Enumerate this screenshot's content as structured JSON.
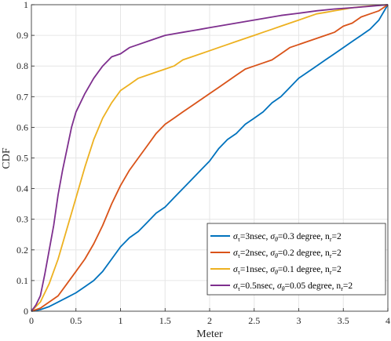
{
  "chart_data": {
    "type": "line",
    "xlabel": "Meter",
    "ylabel": "CDF",
    "xlim": [
      0,
      4
    ],
    "ylim": [
      0,
      1
    ],
    "xticks": [
      "0",
      "0.5",
      "1",
      "1.5",
      "2",
      "2.5",
      "3",
      "3.5",
      "4"
    ],
    "yticks": [
      "0",
      "0.1",
      "0.2",
      "0.3",
      "0.4",
      "0.5",
      "0.6",
      "0.7",
      "0.8",
      "0.9",
      "1"
    ],
    "grid": true,
    "legend_position": "bottom-right",
    "series": [
      {
        "legend": {
          "sigma_tau": "=3nsec, ",
          "sigma_theta": "=0.3 degree, n",
          "r_sub": "r",
          "tail": "=2"
        },
        "color": "#0072BD",
        "x": [
          0,
          0.1,
          0.2,
          0.3,
          0.4,
          0.5,
          0.6,
          0.7,
          0.8,
          0.9,
          1.0,
          1.1,
          1.2,
          1.3,
          1.4,
          1.5,
          1.6,
          1.7,
          1.8,
          1.9,
          2.0,
          2.1,
          2.2,
          2.3,
          2.4,
          2.5,
          2.6,
          2.7,
          2.8,
          2.9,
          3.0,
          3.1,
          3.2,
          3.3,
          3.4,
          3.5,
          3.6,
          3.7,
          3.8,
          3.9,
          4.0
        ],
        "y": [
          0,
          0.005,
          0.015,
          0.03,
          0.045,
          0.06,
          0.08,
          0.1,
          0.13,
          0.17,
          0.21,
          0.24,
          0.26,
          0.29,
          0.32,
          0.34,
          0.37,
          0.4,
          0.43,
          0.46,
          0.49,
          0.53,
          0.56,
          0.58,
          0.61,
          0.63,
          0.65,
          0.68,
          0.7,
          0.73,
          0.76,
          0.78,
          0.8,
          0.82,
          0.84,
          0.86,
          0.88,
          0.9,
          0.92,
          0.95,
          1.0
        ]
      },
      {
        "legend": {
          "sigma_tau": "=2nsec, ",
          "sigma_theta": "=0.2 degree, n",
          "r_sub": "r",
          "tail": "=2"
        },
        "color": "#D95319",
        "x": [
          0,
          0.1,
          0.2,
          0.3,
          0.4,
          0.5,
          0.6,
          0.7,
          0.8,
          0.9,
          1.0,
          1.1,
          1.2,
          1.3,
          1.4,
          1.5,
          1.6,
          1.7,
          1.8,
          1.9,
          2.0,
          2.1,
          2.2,
          2.3,
          2.4,
          2.5,
          2.6,
          2.7,
          2.8,
          2.9,
          3.0,
          3.1,
          3.2,
          3.3,
          3.4,
          3.5,
          3.6,
          3.7,
          3.8,
          3.9,
          4.0
        ],
        "y": [
          0,
          0.01,
          0.03,
          0.05,
          0.09,
          0.13,
          0.17,
          0.22,
          0.28,
          0.35,
          0.41,
          0.46,
          0.5,
          0.54,
          0.58,
          0.61,
          0.63,
          0.65,
          0.67,
          0.69,
          0.71,
          0.73,
          0.75,
          0.77,
          0.79,
          0.8,
          0.81,
          0.82,
          0.84,
          0.86,
          0.87,
          0.88,
          0.89,
          0.9,
          0.91,
          0.93,
          0.94,
          0.96,
          0.97,
          0.98,
          1.0
        ]
      },
      {
        "legend": {
          "sigma_tau": "=1nsec, ",
          "sigma_theta": "=0.1 degree, n",
          "r_sub": "r",
          "tail": "=2"
        },
        "color": "#EDB120",
        "x": [
          0,
          0.1,
          0.2,
          0.3,
          0.4,
          0.5,
          0.6,
          0.7,
          0.8,
          0.9,
          1.0,
          1.1,
          1.2,
          1.3,
          1.4,
          1.5,
          1.6,
          1.7,
          1.8,
          1.9,
          2.0,
          2.1,
          2.2,
          2.3,
          2.4,
          2.5,
          2.6,
          2.7,
          2.8,
          2.9,
          3.0,
          3.1,
          3.2,
          3.3,
          3.4,
          3.5,
          3.6,
          3.7,
          3.8,
          3.9,
          4.0
        ],
        "y": [
          0,
          0.03,
          0.09,
          0.17,
          0.27,
          0.37,
          0.47,
          0.56,
          0.63,
          0.68,
          0.72,
          0.74,
          0.76,
          0.77,
          0.78,
          0.79,
          0.8,
          0.82,
          0.83,
          0.84,
          0.85,
          0.86,
          0.87,
          0.88,
          0.89,
          0.9,
          0.91,
          0.92,
          0.93,
          0.94,
          0.95,
          0.96,
          0.97,
          0.975,
          0.98,
          0.985,
          0.99,
          0.993,
          0.996,
          0.998,
          1.0
        ]
      },
      {
        "legend": {
          "sigma_tau": "=0.5nsec, ",
          "sigma_theta": "=0.05 degree, n",
          "r_sub": "r",
          "tail": "=2"
        },
        "color": "#7E2F8E",
        "x": [
          0,
          0.05,
          0.1,
          0.15,
          0.2,
          0.25,
          0.3,
          0.35,
          0.4,
          0.45,
          0.5,
          0.6,
          0.7,
          0.8,
          0.9,
          1.0,
          1.1,
          1.2,
          1.3,
          1.4,
          1.5,
          1.6,
          1.7,
          1.8,
          1.9,
          2.0,
          2.2,
          2.4,
          2.6,
          2.8,
          3.0,
          3.2,
          3.4,
          3.6,
          3.8,
          4.0
        ],
        "y": [
          0,
          0.02,
          0.05,
          0.12,
          0.2,
          0.28,
          0.38,
          0.46,
          0.53,
          0.6,
          0.65,
          0.71,
          0.76,
          0.8,
          0.83,
          0.84,
          0.86,
          0.87,
          0.88,
          0.89,
          0.9,
          0.905,
          0.91,
          0.915,
          0.92,
          0.925,
          0.935,
          0.945,
          0.955,
          0.965,
          0.972,
          0.98,
          0.986,
          0.99,
          0.995,
          1.0
        ]
      }
    ]
  }
}
